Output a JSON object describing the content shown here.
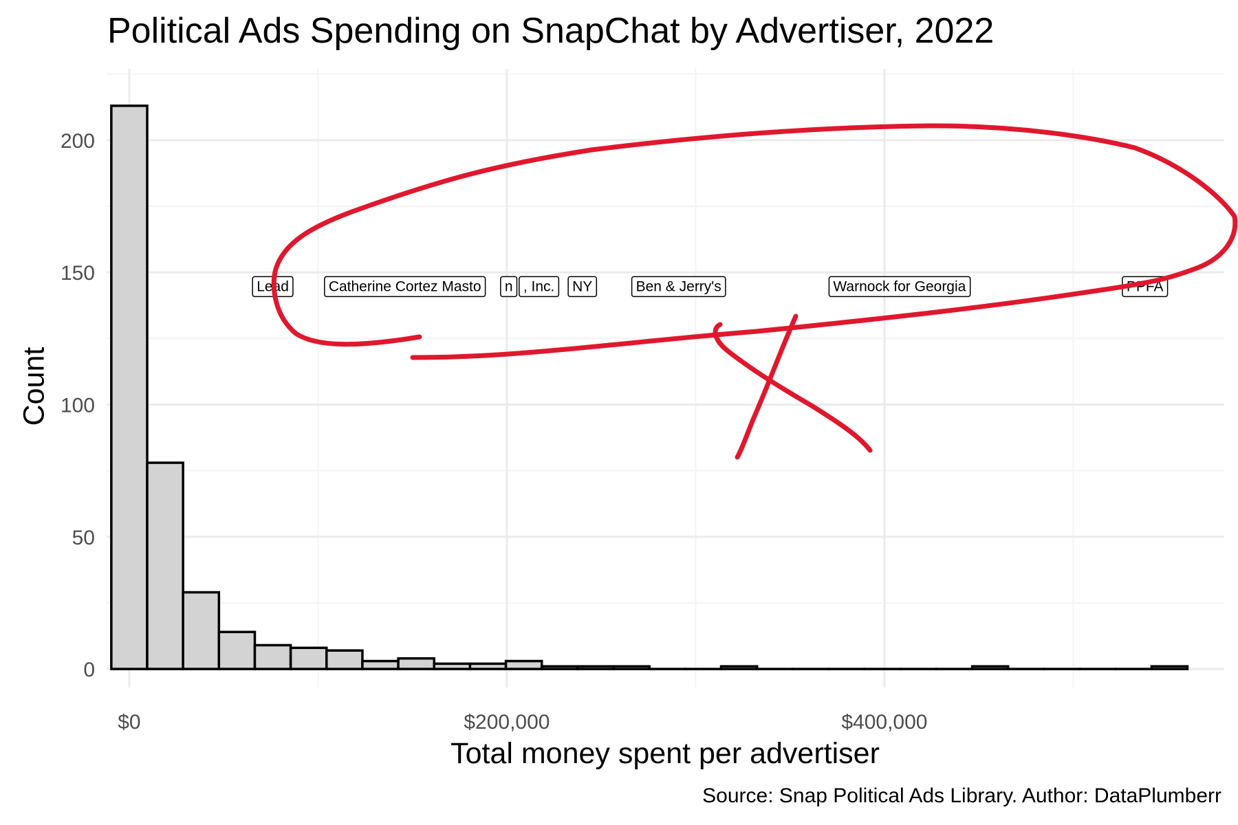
{
  "chart_data": {
    "type": "bar",
    "title": "Political Ads Spending on SnapChat by Advertiser, 2022",
    "xlabel": "Total money spent per advertiser",
    "ylabel": "Count",
    "caption": "Source: Snap Political Ads Library. Author: DataPlumberr",
    "xlim": [
      -12000,
      580000
    ],
    "ylim": [
      -7,
      227
    ],
    "x_ticks": [
      {
        "value": 0,
        "label": "$0"
      },
      {
        "value": 200000,
        "label": "$200,000"
      },
      {
        "value": 400000,
        "label": "$400,000"
      }
    ],
    "y_ticks": [
      {
        "value": 0,
        "label": "0"
      },
      {
        "value": 50,
        "label": "50"
      },
      {
        "value": 100,
        "label": "100"
      },
      {
        "value": 150,
        "label": "150"
      },
      {
        "value": 200,
        "label": "200"
      }
    ],
    "grid": true,
    "bin_width": 19000,
    "bins": [
      {
        "x": 0,
        "count": 213
      },
      {
        "x": 19000,
        "count": 78
      },
      {
        "x": 38000,
        "count": 29
      },
      {
        "x": 57000,
        "count": 14
      },
      {
        "x": 76000,
        "count": 9
      },
      {
        "x": 95000,
        "count": 8
      },
      {
        "x": 114000,
        "count": 7
      },
      {
        "x": 133000,
        "count": 3
      },
      {
        "x": 152000,
        "count": 4
      },
      {
        "x": 171000,
        "count": 2
      },
      {
        "x": 190000,
        "count": 2
      },
      {
        "x": 209000,
        "count": 3
      },
      {
        "x": 228000,
        "count": 1
      },
      {
        "x": 247000,
        "count": 1
      },
      {
        "x": 266000,
        "count": 1
      },
      {
        "x": 285000,
        "count": 0
      },
      {
        "x": 304000,
        "count": 0
      },
      {
        "x": 323000,
        "count": 1
      },
      {
        "x": 342000,
        "count": 0
      },
      {
        "x": 361000,
        "count": 0
      },
      {
        "x": 380000,
        "count": 0
      },
      {
        "x": 399000,
        "count": 0
      },
      {
        "x": 418000,
        "count": 0
      },
      {
        "x": 437000,
        "count": 0
      },
      {
        "x": 456000,
        "count": 1
      },
      {
        "x": 475000,
        "count": 0
      },
      {
        "x": 494000,
        "count": 0
      },
      {
        "x": 513000,
        "count": 0
      },
      {
        "x": 532000,
        "count": 0
      },
      {
        "x": 551000,
        "count": 1
      }
    ],
    "labels": [
      {
        "text": "Lead",
        "x": 76000,
        "y": 145
      },
      {
        "text": "NY",
        "x": 240000,
        "y": 145
      },
      {
        "text": ", Inc.",
        "x": 217000,
        "y": 145
      },
      {
        "text": "n",
        "x": 201000,
        "y": 145
      },
      {
        "text": "Catherine Cortez Masto",
        "x": 146000,
        "y": 145
      },
      {
        "text": "Ben & Jerry's",
        "x": 291000,
        "y": 145
      },
      {
        "text": "Warnock for Georgia",
        "x": 408000,
        "y": 145
      },
      {
        "text": "PPFA",
        "x": 538000,
        "y": 145
      }
    ],
    "colors": {
      "bar_fill": "#d3d3d3",
      "bar_stroke": "#000000",
      "grid_major": "#ebebeb",
      "grid_minor": "#f3f3f3",
      "annotation": "#e0182d"
    }
  }
}
